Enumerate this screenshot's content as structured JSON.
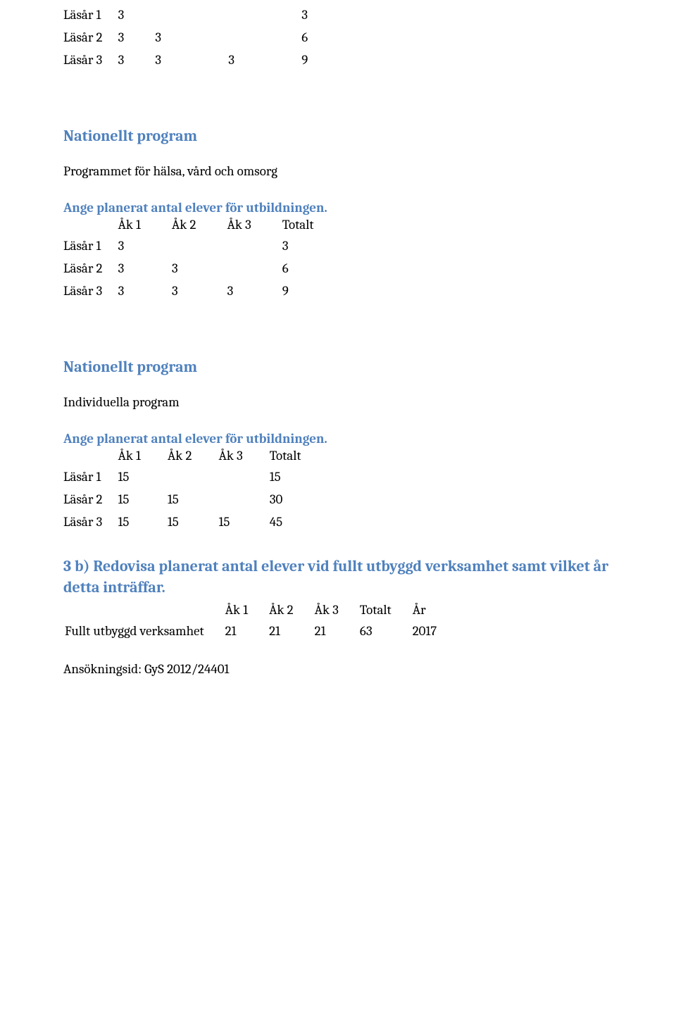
{
  "table1": {
    "rows": [
      [
        "Läsår 1",
        "3",
        "",
        "",
        "3"
      ],
      [
        "Läsår 2",
        "3",
        "3",
        "",
        "6"
      ],
      [
        "Läsår 3",
        "3",
        "3",
        "3",
        "9"
      ]
    ]
  },
  "section1": {
    "heading": "Nationellt program",
    "program_line": "Programmet för hälsa, vård och omsorg",
    "ange_line": "Ange planerat antal elever för utbildningen.",
    "header": [
      "",
      "Åk 1",
      "Åk 2",
      "Åk 3",
      "Totalt"
    ],
    "rows": [
      [
        "Läsår 1",
        "3",
        "",
        "",
        "3"
      ],
      [
        "Läsår 2",
        "3",
        "3",
        "",
        "6"
      ],
      [
        "Läsår 3",
        "3",
        "3",
        "3",
        "9"
      ]
    ]
  },
  "section2": {
    "heading": "Nationellt program",
    "program_line": "Individuella program",
    "ange_line": "Ange planerat antal elever för utbildningen.",
    "header": [
      "",
      "Åk 1",
      "Åk 2",
      "Åk 3",
      "Totalt"
    ],
    "rows": [
      [
        "Läsår 1",
        "15",
        "",
        "",
        "15"
      ],
      [
        "Läsår 2",
        "15",
        "15",
        "",
        "30"
      ],
      [
        "Läsår 3",
        "15",
        "15",
        "15",
        "45"
      ]
    ]
  },
  "section3b": {
    "heading": "3 b) Redovisa planerat antal elever vid fullt utbyggd verksamhet samt vilket år detta inträffar.",
    "header": [
      "",
      "Åk 1",
      "Åk 2",
      "Åk 3",
      "Totalt",
      "År"
    ],
    "row": [
      "Fullt utbyggd verksamhet",
      "21",
      "21",
      "21",
      "63",
      "2017"
    ]
  },
  "footer": {
    "id_line": "Ansökningsid: GyS 2012/24401"
  }
}
